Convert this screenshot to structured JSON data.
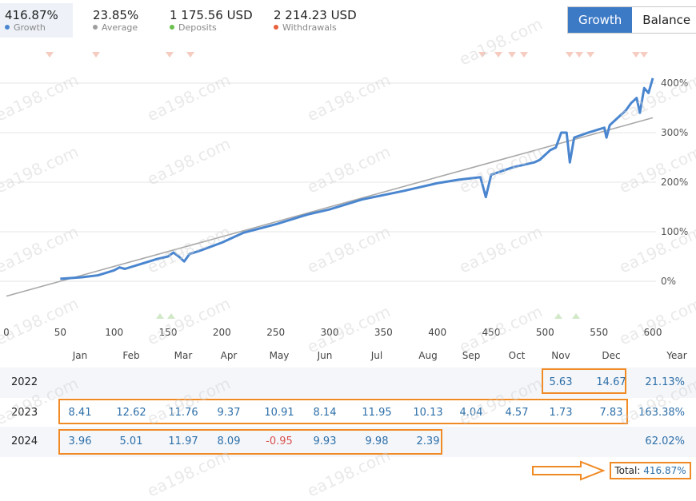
{
  "stats": [
    {
      "value": "416.87%",
      "label": "Growth",
      "color": "#4a86cf"
    },
    {
      "value": "23.85%",
      "label": "Average",
      "color": "#9e9e9e"
    },
    {
      "value": "1 175.56 USD",
      "label": "Deposits",
      "color": "#6bbf4e"
    },
    {
      "value": "2 214.23 USD",
      "label": "Withdrawals",
      "color": "#e8603c"
    }
  ],
  "tabs": {
    "growth": "Growth",
    "balance": "Balance"
  },
  "watermark": "ea198.com",
  "chart_data": {
    "type": "line",
    "x": [
      0,
      50,
      100,
      150,
      200,
      250,
      300,
      350,
      400,
      450,
      500,
      550,
      600
    ],
    "xlim": [
      0,
      600
    ],
    "ylim": [
      -15,
      430
    ],
    "y_ticks": [
      "0%",
      "100%",
      "200%",
      "300%",
      "400%"
    ],
    "y_tick_values": [
      0,
      100,
      200,
      300,
      400
    ],
    "x_tick_labels": [
      "0",
      "50",
      "100",
      "150",
      "200",
      "250",
      "300",
      "350",
      "400",
      "450",
      "500",
      "550",
      "600"
    ],
    "grid": true,
    "series": [
      {
        "color": "#4a86cf",
        "points": [
          [
            50,
            5
          ],
          [
            70,
            8
          ],
          [
            85,
            12
          ],
          [
            100,
            22
          ],
          [
            105,
            28
          ],
          [
            110,
            25
          ],
          [
            125,
            35
          ],
          [
            140,
            45
          ],
          [
            150,
            50
          ],
          [
            155,
            58
          ],
          [
            160,
            50
          ],
          [
            165,
            40
          ],
          [
            170,
            55
          ],
          [
            180,
            62
          ],
          [
            200,
            78
          ],
          [
            220,
            98
          ],
          [
            250,
            115
          ],
          [
            280,
            135
          ],
          [
            300,
            145
          ],
          [
            330,
            165
          ],
          [
            370,
            183
          ],
          [
            400,
            198
          ],
          [
            420,
            205
          ],
          [
            440,
            210
          ],
          [
            445,
            170
          ],
          [
            450,
            215
          ],
          [
            470,
            230
          ],
          [
            490,
            240
          ],
          [
            495,
            245
          ],
          [
            500,
            255
          ],
          [
            505,
            265
          ],
          [
            510,
            270
          ],
          [
            515,
            300
          ],
          [
            520,
            300
          ],
          [
            523,
            240
          ],
          [
            527,
            290
          ],
          [
            540,
            300
          ],
          [
            555,
            310
          ],
          [
            557,
            290
          ],
          [
            560,
            315
          ],
          [
            575,
            345
          ],
          [
            580,
            360
          ],
          [
            585,
            370
          ],
          [
            588,
            340
          ],
          [
            592,
            390
          ],
          [
            596,
            380
          ],
          [
            600,
            410
          ]
        ]
      },
      {
        "color": "#a8a8a8",
        "points": [
          [
            0,
            -30
          ],
          [
            600,
            330
          ]
        ]
      }
    ],
    "months": [
      "Jan",
      "Feb",
      "Mar",
      "Apr",
      "May",
      "Jun",
      "Jul",
      "Aug",
      "Sep",
      "Oct",
      "Nov",
      "Dec"
    ],
    "year_label": "Year",
    "table": [
      {
        "year": "2022",
        "values": [
          "",
          "",
          "",
          "",
          "",
          "",
          "",
          "",
          "",
          "",
          "5.63",
          "14.67"
        ],
        "total": "21.13%"
      },
      {
        "year": "2023",
        "values": [
          "8.41",
          "12.62",
          "11.76",
          "9.37",
          "10.91",
          "8.14",
          "11.95",
          "10.13",
          "4.04",
          "4.57",
          "1.73",
          "7.83"
        ],
        "total": "163.38%"
      },
      {
        "year": "2024",
        "values": [
          "3.96",
          "5.01",
          "11.97",
          "8.09",
          "-0.95",
          "9.93",
          "9.98",
          "2.39",
          "",
          "",
          "",
          ""
        ],
        "total": "62.02%"
      }
    ],
    "total_label": "Total:",
    "total_value": "416.87%"
  }
}
